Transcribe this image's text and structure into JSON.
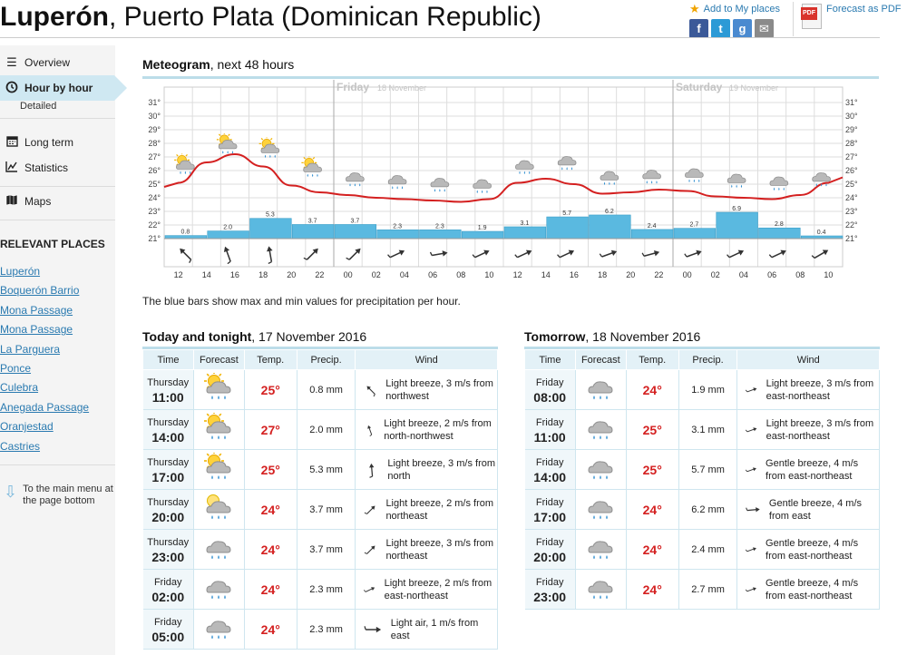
{
  "header": {
    "title_bold": "Luperón",
    "title_rest": ", Puerto Plata (Dominican Republic)",
    "add_to_places": "Add to My places",
    "social": [
      {
        "name": "facebook",
        "glyph": "f",
        "color": "#3b5998"
      },
      {
        "name": "twitter",
        "glyph": "t",
        "color": "#2c9ad6"
      },
      {
        "name": "google",
        "glyph": "g",
        "color": "#4a8ad0"
      },
      {
        "name": "email",
        "glyph": "✉",
        "color": "#8a8a8a"
      }
    ],
    "pdf_label": "Forecast as PDF",
    "pdf_badge": "PDF"
  },
  "sidebar": {
    "overview": "Overview",
    "hour_by_hour": "Hour by hour",
    "detailed": "Detailed",
    "long_term": "Long term",
    "statistics": "Statistics",
    "maps": "Maps",
    "relevant_title": "RELEVANT PLACES",
    "places": [
      "Luperón",
      "Boquerón Barrio",
      "Mona Passage",
      "Mona Passage",
      "La Parguera",
      "Ponce",
      "Culebra",
      "Anegada Passage",
      "Oranjestad",
      "Castries"
    ],
    "to_main_menu": "To the main menu at the page bottom"
  },
  "meteogram": {
    "title_bold": "Meteogram",
    "title_rest": ", next 48 hours",
    "note": "The blue bars show max and min values for precipitation per hour.",
    "day_labels": [
      {
        "day": "Friday",
        "date": "18 November",
        "at_hour_index": 6
      },
      {
        "day": "Saturday",
        "date": "19 November",
        "at_hour_index": 18
      }
    ],
    "y_ticks": [
      31,
      30,
      29,
      28,
      27,
      26,
      25,
      24,
      23,
      22,
      21
    ],
    "x_labels": [
      "12",
      "14",
      "16",
      "18",
      "20",
      "22",
      "00",
      "02",
      "04",
      "06",
      "08",
      "10",
      "12",
      "14",
      "16",
      "18",
      "20",
      "22",
      "00",
      "02",
      "04",
      "06",
      "08",
      "10"
    ],
    "colors": {
      "temp_line": "#d42020",
      "bar": "#5ab9e0",
      "grid": "#dddddd",
      "highlight": "#bfe2f0"
    },
    "temps": [
      25.1,
      26.6,
      27.2,
      26.3,
      24.9,
      24.4,
      24.2,
      24.0,
      23.9,
      23.8,
      23.7,
      23.9,
      25.1,
      25.4,
      25.0,
      24.3,
      24.4,
      24.6,
      24.5,
      24.1,
      24.0,
      23.9,
      24.2,
      25.1
    ],
    "precip": [
      {
        "v": 0.8,
        "label": "0.8"
      },
      {
        "v": 2.0,
        "label": "2.0"
      },
      {
        "v": 5.3,
        "label": "5.3"
      },
      {
        "v": 3.7,
        "label": "3.7"
      },
      {
        "v": 3.7,
        "label": "3.7"
      },
      {
        "v": 2.3,
        "label": "2.3"
      },
      {
        "v": 2.3,
        "label": "2.3"
      },
      {
        "v": 1.9,
        "label": "1.9"
      },
      {
        "v": 3.1,
        "label": "3.1"
      },
      {
        "v": 5.7,
        "label": "5.7"
      },
      {
        "v": 6.2,
        "label": "6.2"
      },
      {
        "v": 2.4,
        "label": "2.4"
      },
      {
        "v": 2.7,
        "label": "2.7"
      },
      {
        "v": 6.9,
        "label": "6.9"
      },
      {
        "v": 2.8,
        "label": "2.8"
      },
      {
        "v": 0.4,
        "label": "0.4"
      }
    ],
    "symbols": [
      "sun-cloud-rain",
      "sun-cloud-rain",
      "sun-cloud-rain",
      "sun-cloud-rain",
      "cloud-rain",
      "cloud-rain",
      "cloud-rain",
      "cloud-rain",
      "cloud-rain",
      "cloud-rain",
      "cloud-rain",
      "cloud-rain",
      "cloud-rain",
      "cloud-rain",
      "cloud-rain",
      "cloud-rain"
    ],
    "wind_dirs": [
      135,
      160,
      170,
      225,
      225,
      245,
      260,
      245,
      245,
      245,
      250,
      255,
      250,
      245,
      245,
      240
    ]
  },
  "today": {
    "title_bold": "Today and tonight",
    "title_rest": ", 17 November 2016",
    "headers": [
      "Time",
      "Forecast",
      "Temp.",
      "Precip.",
      "Wind"
    ],
    "rows": [
      {
        "day": "Thursday",
        "hour": "11:00",
        "icon": "sun-cloud-rain",
        "temp": "25°",
        "precip": "0.8 mm",
        "wind": "Light breeze, 3 m/s from northwest",
        "dir": 135
      },
      {
        "day": "Thursday",
        "hour": "14:00",
        "icon": "sun-cloud-rain",
        "temp": "27°",
        "precip": "2.0 mm",
        "wind": "Light breeze, 2 m/s from north-northwest",
        "dir": 160
      },
      {
        "day": "Thursday",
        "hour": "17:00",
        "icon": "sun-cloud-rain",
        "temp": "25°",
        "precip": "5.3 mm",
        "wind": "Light breeze, 3 m/s from north",
        "dir": 175
      },
      {
        "day": "Thursday",
        "hour": "20:00",
        "icon": "moon-cloud-rain",
        "temp": "24°",
        "precip": "3.7 mm",
        "wind": "Light breeze, 2 m/s from northeast",
        "dir": 225
      },
      {
        "day": "Thursday",
        "hour": "23:00",
        "icon": "cloud-rain",
        "temp": "24°",
        "precip": "3.7 mm",
        "wind": "Light breeze, 3 m/s from northeast",
        "dir": 225
      },
      {
        "day": "Friday",
        "hour": "02:00",
        "icon": "cloud-rain",
        "temp": "24°",
        "precip": "2.3 mm",
        "wind": "Light breeze, 2 m/s from east-northeast",
        "dir": 245
      },
      {
        "day": "Friday",
        "hour": "05:00",
        "icon": "cloud-rain",
        "temp": "24°",
        "precip": "2.3 mm",
        "wind": "Light air, 1 m/s from east",
        "dir": 270
      }
    ]
  },
  "tomorrow": {
    "title_bold": "Tomorrow",
    "title_rest": ", 18 November 2016",
    "headers": [
      "Time",
      "Forecast",
      "Temp.",
      "Precip.",
      "Wind"
    ],
    "rows": [
      {
        "day": "Friday",
        "hour": "08:00",
        "icon": "cloud-rain",
        "temp": "24°",
        "precip": "1.9 mm",
        "wind": "Light breeze, 3 m/s from east-northeast",
        "dir": 250
      },
      {
        "day": "Friday",
        "hour": "11:00",
        "icon": "cloud-rain",
        "temp": "25°",
        "precip": "3.1 mm",
        "wind": "Light breeze, 3 m/s from east-northeast",
        "dir": 250
      },
      {
        "day": "Friday",
        "hour": "14:00",
        "icon": "cloud-rain",
        "temp": "25°",
        "precip": "5.7 mm",
        "wind": "Gentle breeze, 4 m/s from east-northeast",
        "dir": 250
      },
      {
        "day": "Friday",
        "hour": "17:00",
        "icon": "cloud-rain",
        "temp": "24°",
        "precip": "6.2 mm",
        "wind": "Gentle breeze, 4 m/s from east",
        "dir": 265
      },
      {
        "day": "Friday",
        "hour": "20:00",
        "icon": "cloud-rain",
        "temp": "24°",
        "precip": "2.4 mm",
        "wind": "Gentle breeze, 4 m/s from east-northeast",
        "dir": 250
      },
      {
        "day": "Friday",
        "hour": "23:00",
        "icon": "cloud-rain",
        "temp": "24°",
        "precip": "2.7 mm",
        "wind": "Gentle breeze, 4 m/s from east-northeast",
        "dir": 250
      }
    ]
  }
}
